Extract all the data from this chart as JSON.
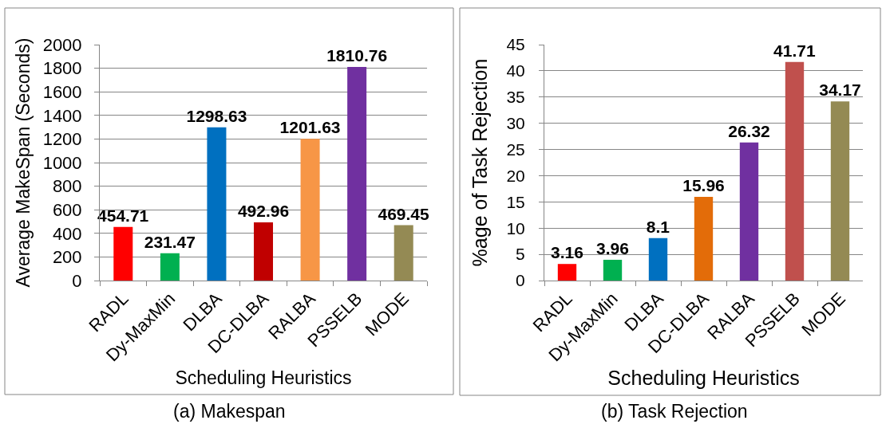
{
  "chart_data": [
    {
      "type": "bar",
      "categories": [
        "RADL",
        "Dy-MaxMin",
        "DLBA",
        "DC-DLBA",
        "RALBA",
        "PSSELB",
        "MODE"
      ],
      "values": [
        454.71,
        231.47,
        1298.63,
        492.96,
        1201.63,
        1810.76,
        469.45
      ],
      "colors": [
        "#ff0000",
        "#00b050",
        "#0070c0",
        "#c00000",
        "#f79646",
        "#7030a0",
        "#948a54"
      ],
      "xlabel": "Scheduling Heuristics",
      "ylabel": "Average MakeSpan (Seconds)",
      "ylim": [
        0,
        2000
      ],
      "yticks": [
        0,
        200,
        400,
        600,
        800,
        1000,
        1200,
        1400,
        1600,
        1800,
        2000
      ],
      "grid": "y",
      "data_labels": true,
      "annotations": [
        "(a) Makespan"
      ]
    },
    {
      "type": "bar",
      "categories": [
        "RADL",
        "Dy-MaxMin",
        "DLBA",
        "DC-DLBA",
        "RALBA",
        "PSSELB",
        "MODE"
      ],
      "values": [
        3.16,
        3.96,
        8.1,
        15.96,
        26.32,
        41.71,
        34.17
      ],
      "colors": [
        "#ff0000",
        "#00b050",
        "#0070c0",
        "#e36c09",
        "#7030a0",
        "#c0504d",
        "#948a54"
      ],
      "xlabel": "Scheduling Heuristics",
      "ylabel": "%age of Task Rejection",
      "ylim": [
        0,
        45
      ],
      "yticks": [
        0,
        5,
        10,
        15,
        20,
        25,
        30,
        35,
        40,
        45
      ],
      "grid": "y",
      "data_labels": true,
      "annotations": [
        "(b) Task Rejection"
      ]
    }
  ]
}
